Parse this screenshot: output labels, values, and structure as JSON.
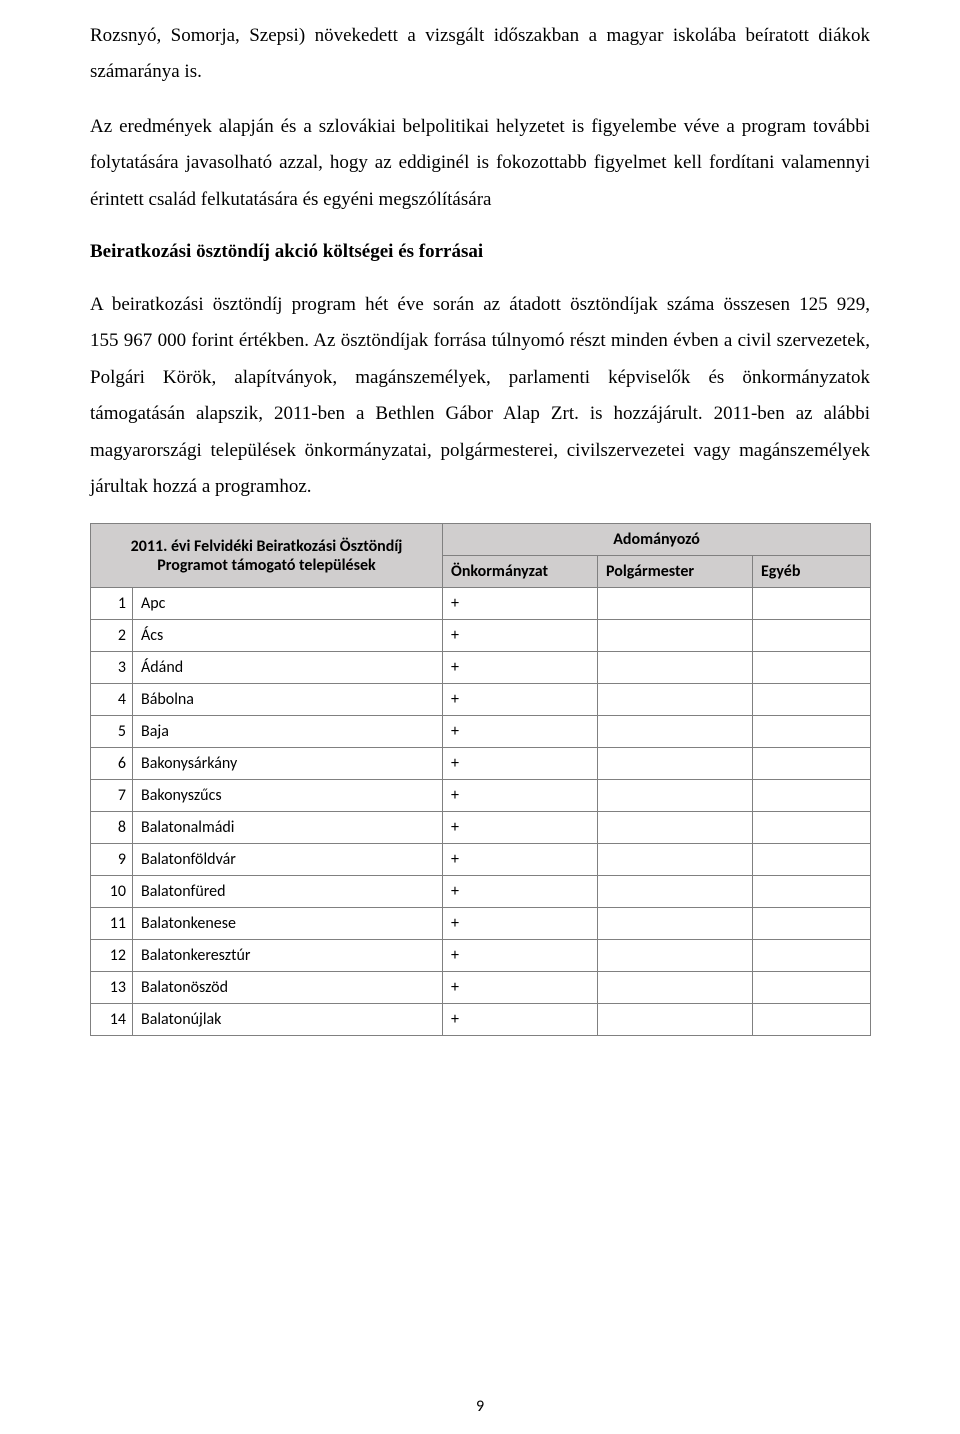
{
  "paragraphs": {
    "p1": "Rozsnyó, Somorja, Szepsi) növekedett a vizsgált időszakban a magyar iskolába beíratott diákok számaránya is.",
    "p2": "Az eredmények alapján és a szlovákiai belpolitikai helyzetet is figyelembe véve a program további folytatására javasolható azzal, hogy az eddiginél is fokozottabb figyelmet kell fordítani valamennyi érintett család felkutatására és egyéni megszólítására"
  },
  "heading": "Beiratkozási ösztöndíj akció költségei és forrásai",
  "paragraph3": "A beiratkozási ösztöndíj program hét éve során az átadott ösztöndíjak száma összesen 125 929, 155 967 000 forint értékben. Az ösztöndíjak forrása túlnyomó részt minden évben a civil szervezetek, Polgári Körök, alapítványok, magánszemélyek, parlamenti képviselők és önkormányzatok támogatásán alapszik, 2011-ben a Bethlen Gábor Alap Zrt. is hozzájárult. 2011-ben az alábbi magyarországi települések önkormányzatai, polgármesterei, civilszervezetei vagy magánszemélyek járultak hozzá a programhoz.",
  "table": {
    "header_left_line1": "2011. évi Felvidéki Beiratkozási Ösztöndíj",
    "header_left_line2": "Programot támogató települések",
    "header_top": "Adományozó",
    "col_onkormanyzat": "Önkormányzat",
    "col_polgarmester": "Polgármester",
    "col_egyeb": "Egyéb",
    "rows": [
      {
        "n": "1",
        "name": "Apc",
        "onk": "+",
        "polg": "",
        "egy": ""
      },
      {
        "n": "2",
        "name": "Ács",
        "onk": "+",
        "polg": "",
        "egy": ""
      },
      {
        "n": "3",
        "name": "Ádánd",
        "onk": "+",
        "polg": "",
        "egy": ""
      },
      {
        "n": "4",
        "name": "Bábolna",
        "onk": "+",
        "polg": "",
        "egy": ""
      },
      {
        "n": "5",
        "name": "Baja",
        "onk": "+",
        "polg": "",
        "egy": ""
      },
      {
        "n": "6",
        "name": "Bakonysárkány",
        "onk": "+",
        "polg": "",
        "egy": ""
      },
      {
        "n": "7",
        "name": "Bakonyszűcs",
        "onk": "+",
        "polg": "",
        "egy": ""
      },
      {
        "n": "8",
        "name": "Balatonalmádi",
        "onk": "+",
        "polg": "",
        "egy": ""
      },
      {
        "n": "9",
        "name": "Balatonföldvár",
        "onk": "+",
        "polg": "",
        "egy": ""
      },
      {
        "n": "10",
        "name": "Balatonfüred",
        "onk": "+",
        "polg": "",
        "egy": ""
      },
      {
        "n": "11",
        "name": "Balatonkenese",
        "onk": "+",
        "polg": "",
        "egy": ""
      },
      {
        "n": "12",
        "name": "Balatonkeresztúr",
        "onk": "+",
        "polg": "",
        "egy": ""
      },
      {
        "n": "13",
        "name": "Balatonöszöd",
        "onk": "+",
        "polg": "",
        "egy": ""
      },
      {
        "n": "14",
        "name": "Balatonújlak",
        "onk": "+",
        "polg": "",
        "egy": ""
      }
    ]
  },
  "page_number": "9"
}
